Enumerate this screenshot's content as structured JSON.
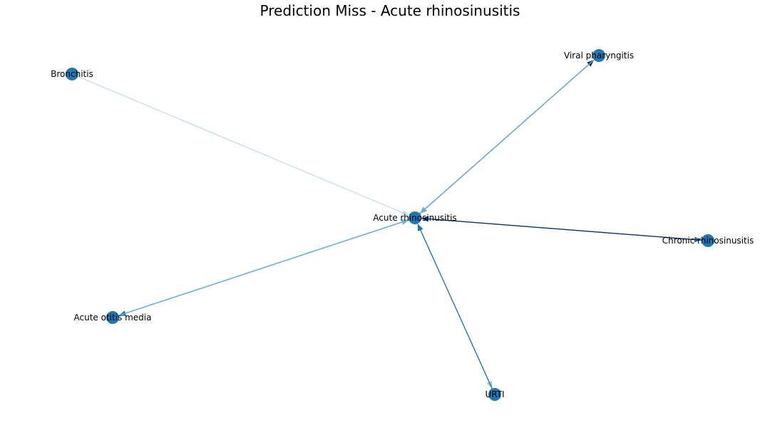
{
  "title": "Prediction Miss - Acute rhinosinusitis",
  "node_color": "#1f77b4",
  "nodes": [
    {
      "id": "ar",
      "label": "Acute rhinosinusitis"
    },
    {
      "id": "vp",
      "label": "Viral pharyngitis"
    },
    {
      "id": "br",
      "label": "Bronchitis"
    },
    {
      "id": "cr",
      "label": "Chronic rhinosinusitis"
    },
    {
      "id": "aom",
      "label": "Acute otitis media"
    },
    {
      "id": "urti",
      "label": "URTI"
    }
  ],
  "edges": [
    {
      "from": "br",
      "to": "ar",
      "color": "#c6dbef"
    },
    {
      "from": "ar",
      "to": "aom",
      "color": "#2171b5"
    },
    {
      "from": "aom",
      "to": "ar",
      "color": "#6baed6"
    },
    {
      "from": "ar",
      "to": "vp",
      "color": "#08306b"
    },
    {
      "from": "vp",
      "to": "ar",
      "color": "#6baed6"
    },
    {
      "from": "ar",
      "to": "cr",
      "color": "#2171b5"
    },
    {
      "from": "cr",
      "to": "ar",
      "color": "#08306b"
    },
    {
      "from": "ar",
      "to": "urti",
      "color": "#9ecae1"
    },
    {
      "from": "urti",
      "to": "ar",
      "color": "#2171b5"
    }
  ]
}
